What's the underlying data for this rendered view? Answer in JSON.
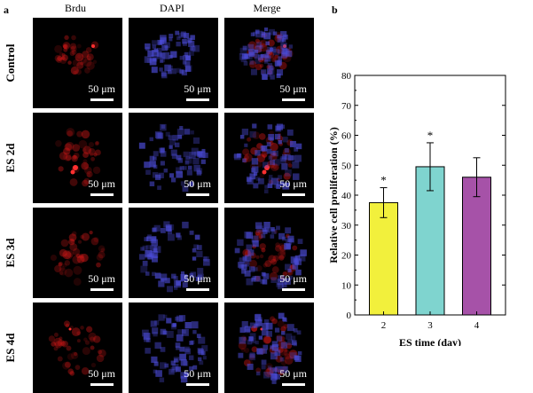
{
  "panel_a": {
    "letter": "a",
    "columns": [
      "Brdu",
      "DAPI",
      "Merge"
    ],
    "rows": [
      "Control",
      "ES 2d",
      "ES 3d",
      "ES 4d"
    ],
    "scale_label": "50 μm"
  },
  "panel_b": {
    "letter": "b"
  },
  "colors": {
    "brdu": "#e21a1a",
    "dapi": "#4b4bd6",
    "background": "#000000"
  },
  "chart_data": {
    "type": "bar",
    "categories": [
      "2",
      "3",
      "4"
    ],
    "values": [
      37.5,
      49.5,
      46.0
    ],
    "errors": [
      5.0,
      8.0,
      6.5
    ],
    "significance": [
      "*",
      "*",
      ""
    ],
    "bar_colors": [
      "#f2f03c",
      "#7fd4cf",
      "#a652a8"
    ],
    "xlabel": "ES time (day)",
    "ylabel": "Relative cell proliferation (%)",
    "ylim": [
      0,
      80
    ],
    "yticks": [
      0,
      10,
      20,
      30,
      40,
      50,
      60,
      70,
      80
    ],
    "grid": false
  }
}
